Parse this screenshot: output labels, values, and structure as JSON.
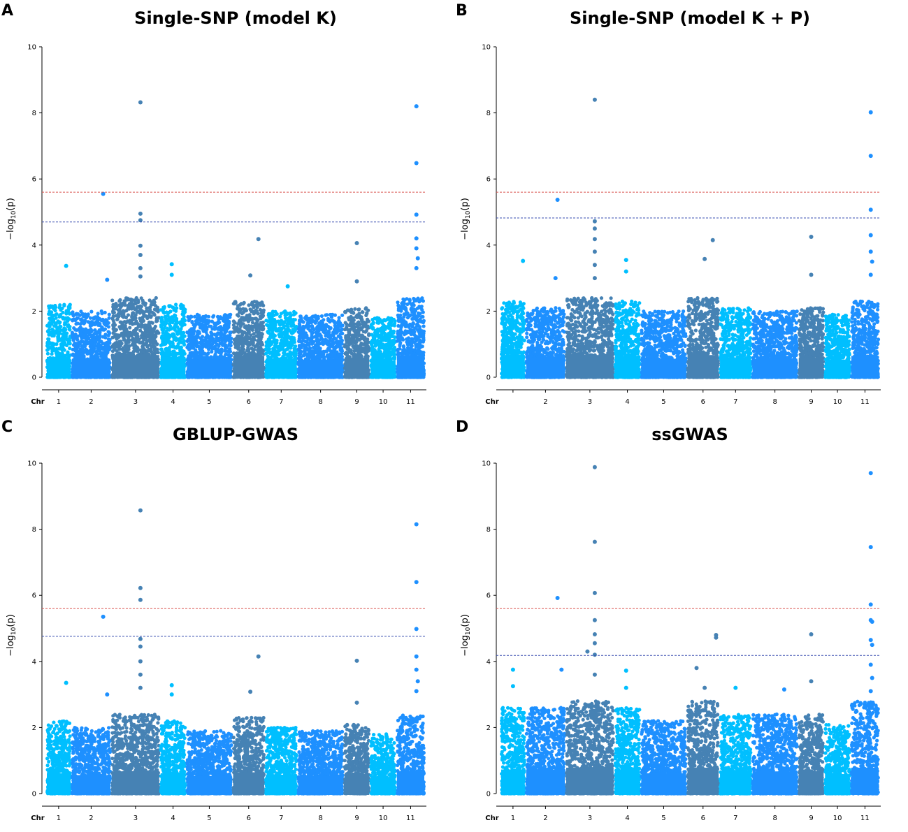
{
  "colors": {
    "chr_palette": [
      "#00bfff",
      "#1e90ff",
      "#4682b4"
    ],
    "threshold_red": "#d9534f",
    "threshold_blue": "#3a4fb0"
  },
  "chart_data": [
    {
      "id": "A",
      "type": "scatter",
      "title": "Single-SNP (model K)",
      "ylabel": "-log10(p)",
      "xlabel": "Chr",
      "ylim": [
        0,
        10
      ],
      "yticks": [
        0,
        2,
        4,
        6,
        8,
        10
      ],
      "chromosomes": [
        "1",
        "2",
        "3",
        "4",
        "5",
        "6",
        "7",
        "8",
        "9",
        "10",
        "11"
      ],
      "chr_sizes": [
        1.0,
        1.6,
        1.95,
        1.05,
        1.85,
        1.3,
        1.3,
        1.85,
        1.05,
        1.05,
        1.15
      ],
      "thresholds": [
        {
          "value": 5.6,
          "color": "red"
        },
        {
          "value": 4.7,
          "color": "blue"
        }
      ],
      "background_max": [
        2.2,
        2.0,
        2.4,
        2.2,
        1.9,
        2.3,
        2.0,
        1.9,
        2.1,
        1.8,
        2.4
      ],
      "peaks": [
        {
          "chr": "1",
          "pos": 0.8,
          "y": 3.37
        },
        {
          "chr": "2",
          "pos": 0.8,
          "y": 5.55
        },
        {
          "chr": "2",
          "pos": 0.9,
          "y": 2.95
        },
        {
          "chr": "3",
          "pos": 0.6,
          "y": 8.32
        },
        {
          "chr": "3",
          "pos": 0.6,
          "y": 4.95
        },
        {
          "chr": "3",
          "pos": 0.6,
          "y": 4.75
        },
        {
          "chr": "3",
          "pos": 0.6,
          "y": 3.98
        },
        {
          "chr": "3",
          "pos": 0.6,
          "y": 3.7
        },
        {
          "chr": "3",
          "pos": 0.6,
          "y": 3.3
        },
        {
          "chr": "3",
          "pos": 0.6,
          "y": 3.05
        },
        {
          "chr": "4",
          "pos": 0.45,
          "y": 3.42
        },
        {
          "chr": "4",
          "pos": 0.45,
          "y": 3.1
        },
        {
          "chr": "6",
          "pos": 0.8,
          "y": 4.18
        },
        {
          "chr": "6",
          "pos": 0.55,
          "y": 3.08
        },
        {
          "chr": "7",
          "pos": 0.7,
          "y": 2.75
        },
        {
          "chr": "9",
          "pos": 0.5,
          "y": 4.06
        },
        {
          "chr": "9",
          "pos": 0.5,
          "y": 2.9
        },
        {
          "chr": "11",
          "pos": 0.7,
          "y": 8.2
        },
        {
          "chr": "11",
          "pos": 0.7,
          "y": 6.48
        },
        {
          "chr": "11",
          "pos": 0.7,
          "y": 4.92
        },
        {
          "chr": "11",
          "pos": 0.7,
          "y": 4.2
        },
        {
          "chr": "11",
          "pos": 0.7,
          "y": 3.9
        },
        {
          "chr": "11",
          "pos": 0.75,
          "y": 3.6
        },
        {
          "chr": "11",
          "pos": 0.7,
          "y": 3.3
        }
      ]
    },
    {
      "id": "B",
      "type": "scatter",
      "title": "Single-SNP (model K + P)",
      "ylabel": "-log10(p)",
      "xlabel": "Chr",
      "ylim": [
        0,
        10
      ],
      "yticks": [
        0,
        2,
        4,
        6,
        8,
        10
      ],
      "chromosomes": [
        "",
        "2",
        "3",
        "4",
        "5",
        "6",
        "7",
        "8",
        "9",
        "10",
        "11"
      ],
      "chr_sizes": [
        1.0,
        1.6,
        1.95,
        1.05,
        1.85,
        1.3,
        1.3,
        1.85,
        1.05,
        1.05,
        1.15
      ],
      "thresholds": [
        {
          "value": 5.6,
          "color": "red"
        },
        {
          "value": 4.82,
          "color": "blue"
        }
      ],
      "background_max": [
        2.3,
        2.1,
        2.4,
        2.3,
        2.0,
        2.4,
        2.1,
        2.0,
        2.1,
        1.9,
        2.3
      ],
      "peaks": [
        {
          "chr": "",
          "pos": 0.9,
          "y": 3.52
        },
        {
          "chr": "2",
          "pos": 0.8,
          "y": 5.37
        },
        {
          "chr": "2",
          "pos": 0.75,
          "y": 3.0
        },
        {
          "chr": "3",
          "pos": 0.6,
          "y": 8.4
        },
        {
          "chr": "3",
          "pos": 0.6,
          "y": 4.72
        },
        {
          "chr": "3",
          "pos": 0.6,
          "y": 4.5
        },
        {
          "chr": "3",
          "pos": 0.6,
          "y": 4.18
        },
        {
          "chr": "3",
          "pos": 0.6,
          "y": 3.8
        },
        {
          "chr": "3",
          "pos": 0.6,
          "y": 3.4
        },
        {
          "chr": "3",
          "pos": 0.6,
          "y": 3.0
        },
        {
          "chr": "4",
          "pos": 0.45,
          "y": 3.55
        },
        {
          "chr": "4",
          "pos": 0.45,
          "y": 3.2
        },
        {
          "chr": "6",
          "pos": 0.8,
          "y": 4.15
        },
        {
          "chr": "6",
          "pos": 0.55,
          "y": 3.58
        },
        {
          "chr": "9",
          "pos": 0.5,
          "y": 4.25
        },
        {
          "chr": "9",
          "pos": 0.5,
          "y": 3.1
        },
        {
          "chr": "11",
          "pos": 0.7,
          "y": 8.02
        },
        {
          "chr": "11",
          "pos": 0.7,
          "y": 6.7
        },
        {
          "chr": "11",
          "pos": 0.7,
          "y": 5.07
        },
        {
          "chr": "11",
          "pos": 0.7,
          "y": 4.3
        },
        {
          "chr": "11",
          "pos": 0.7,
          "y": 3.8
        },
        {
          "chr": "11",
          "pos": 0.75,
          "y": 3.5
        },
        {
          "chr": "11",
          "pos": 0.7,
          "y": 3.1
        }
      ]
    },
    {
      "id": "C",
      "type": "scatter",
      "title": "GBLUP-GWAS",
      "ylabel": "-log10(p)",
      "xlabel": "Chr",
      "ylim": [
        0,
        10
      ],
      "yticks": [
        0,
        2,
        4,
        6,
        8,
        10
      ],
      "chromosomes": [
        "1",
        "2",
        "3",
        "4",
        "5",
        "6",
        "7",
        "8",
        "9",
        "10",
        "11"
      ],
      "chr_sizes": [
        1.0,
        1.6,
        1.95,
        1.05,
        1.85,
        1.3,
        1.3,
        1.85,
        1.05,
        1.05,
        1.15
      ],
      "thresholds": [
        {
          "value": 5.6,
          "color": "red"
        },
        {
          "value": 4.76,
          "color": "blue"
        }
      ],
      "background_max": [
        2.2,
        2.0,
        2.4,
        2.2,
        1.9,
        2.3,
        2.0,
        1.9,
        2.1,
        1.8,
        2.4
      ],
      "peaks": [
        {
          "chr": "1",
          "pos": 0.8,
          "y": 3.35
        },
        {
          "chr": "2",
          "pos": 0.8,
          "y": 5.35
        },
        {
          "chr": "2",
          "pos": 0.9,
          "y": 3.0
        },
        {
          "chr": "3",
          "pos": 0.6,
          "y": 8.57
        },
        {
          "chr": "3",
          "pos": 0.6,
          "y": 6.22
        },
        {
          "chr": "3",
          "pos": 0.6,
          "y": 5.86
        },
        {
          "chr": "3",
          "pos": 0.6,
          "y": 4.68
        },
        {
          "chr": "3",
          "pos": 0.6,
          "y": 4.45
        },
        {
          "chr": "3",
          "pos": 0.6,
          "y": 4.0
        },
        {
          "chr": "3",
          "pos": 0.6,
          "y": 3.6
        },
        {
          "chr": "3",
          "pos": 0.6,
          "y": 3.2
        },
        {
          "chr": "4",
          "pos": 0.45,
          "y": 3.28
        },
        {
          "chr": "4",
          "pos": 0.45,
          "y": 3.0
        },
        {
          "chr": "6",
          "pos": 0.8,
          "y": 4.15
        },
        {
          "chr": "6",
          "pos": 0.55,
          "y": 3.08
        },
        {
          "chr": "9",
          "pos": 0.5,
          "y": 4.02
        },
        {
          "chr": "9",
          "pos": 0.5,
          "y": 2.75
        },
        {
          "chr": "11",
          "pos": 0.7,
          "y": 8.15
        },
        {
          "chr": "11",
          "pos": 0.7,
          "y": 6.4
        },
        {
          "chr": "11",
          "pos": 0.7,
          "y": 4.98
        },
        {
          "chr": "11",
          "pos": 0.7,
          "y": 4.15
        },
        {
          "chr": "11",
          "pos": 0.7,
          "y": 3.75
        },
        {
          "chr": "11",
          "pos": 0.75,
          "y": 3.4
        },
        {
          "chr": "11",
          "pos": 0.7,
          "y": 3.1
        }
      ]
    },
    {
      "id": "D",
      "type": "scatter",
      "title": "ssGWAS",
      "ylabel": "-log10(p)",
      "xlabel": "Chr",
      "ylim": [
        0,
        10
      ],
      "yticks": [
        0,
        2,
        4,
        6,
        8,
        10
      ],
      "chromosomes": [
        "1",
        "2",
        "3",
        "4",
        "5",
        "6",
        "7",
        "8",
        "9",
        "10",
        "11"
      ],
      "chr_sizes": [
        1.0,
        1.6,
        1.95,
        1.05,
        1.85,
        1.3,
        1.3,
        1.85,
        1.05,
        1.05,
        1.15
      ],
      "thresholds": [
        {
          "value": 5.6,
          "color": "red"
        },
        {
          "value": 4.18,
          "color": "blue"
        }
      ],
      "background_max": [
        2.6,
        2.6,
        2.8,
        2.6,
        2.2,
        2.8,
        2.4,
        2.4,
        2.4,
        2.1,
        2.8
      ],
      "peaks": [
        {
          "chr": "1",
          "pos": 0.5,
          "y": 3.75
        },
        {
          "chr": "1",
          "pos": 0.5,
          "y": 3.25
        },
        {
          "chr": "2",
          "pos": 0.8,
          "y": 5.92
        },
        {
          "chr": "2",
          "pos": 0.9,
          "y": 3.75
        },
        {
          "chr": "3",
          "pos": 0.6,
          "y": 9.88
        },
        {
          "chr": "3",
          "pos": 0.6,
          "y": 7.62
        },
        {
          "chr": "3",
          "pos": 0.6,
          "y": 6.07
        },
        {
          "chr": "3",
          "pos": 0.6,
          "y": 5.25
        },
        {
          "chr": "3",
          "pos": 0.6,
          "y": 4.82
        },
        {
          "chr": "3",
          "pos": 0.6,
          "y": 4.55
        },
        {
          "chr": "3",
          "pos": 0.6,
          "y": 4.2
        },
        {
          "chr": "3",
          "pos": 0.6,
          "y": 3.6
        },
        {
          "chr": "3",
          "pos": 0.45,
          "y": 4.3
        },
        {
          "chr": "4",
          "pos": 0.45,
          "y": 3.72
        },
        {
          "chr": "4",
          "pos": 0.45,
          "y": 3.2
        },
        {
          "chr": "6",
          "pos": 0.3,
          "y": 3.8
        },
        {
          "chr": "6",
          "pos": 0.9,
          "y": 4.8
        },
        {
          "chr": "6",
          "pos": 0.9,
          "y": 4.72
        },
        {
          "chr": "6",
          "pos": 0.55,
          "y": 3.2
        },
        {
          "chr": "7",
          "pos": 0.5,
          "y": 3.2
        },
        {
          "chr": "8",
          "pos": 0.7,
          "y": 3.15
        },
        {
          "chr": "9",
          "pos": 0.5,
          "y": 4.82
        },
        {
          "chr": "9",
          "pos": 0.5,
          "y": 3.4
        },
        {
          "chr": "11",
          "pos": 0.7,
          "y": 9.7
        },
        {
          "chr": "11",
          "pos": 0.7,
          "y": 7.46
        },
        {
          "chr": "11",
          "pos": 0.7,
          "y": 5.72
        },
        {
          "chr": "11",
          "pos": 0.7,
          "y": 5.25
        },
        {
          "chr": "11",
          "pos": 0.75,
          "y": 5.2
        },
        {
          "chr": "11",
          "pos": 0.7,
          "y": 4.65
        },
        {
          "chr": "11",
          "pos": 0.75,
          "y": 4.5
        },
        {
          "chr": "11",
          "pos": 0.7,
          "y": 3.9
        },
        {
          "chr": "11",
          "pos": 0.75,
          "y": 3.5
        },
        {
          "chr": "11",
          "pos": 0.7,
          "y": 3.1
        }
      ]
    }
  ]
}
